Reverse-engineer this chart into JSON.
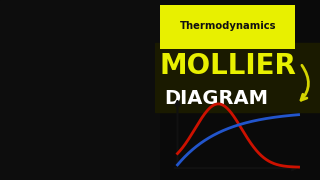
{
  "bg_color": "#0a0a0a",
  "yellow_color": "#e8f000",
  "white_color": "#ffffff",
  "black_color": "#000000",
  "title_top": "Thermodynamics",
  "title_main": "MOLLIER",
  "title_sub": "DIAGRAM",
  "arrow_color": "#d4d400",
  "red_curve_color": "#cc1100",
  "blue_curve_color": "#2255cc",
  "axis_color": "#111111",
  "chart_bg": "#e8e8e8",
  "chart_border": "#bbbbbb",
  "right_strip_color": "#c8b870",
  "thermo_box_color": "#e8f000",
  "thermo_text_color": "#111111",
  "left_bg": "#111111",
  "right_bg": "#0a0a0a"
}
